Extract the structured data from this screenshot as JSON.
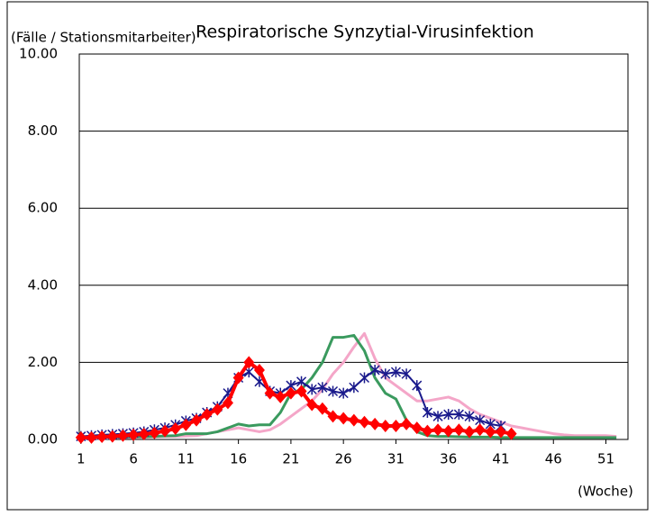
{
  "chart_data": {
    "type": "line",
    "title": "Respiratorische Synzytial-Virusinfektion",
    "y_label": "(Fälle / Stationsmitarbeiter)",
    "x_label": "(Woche)",
    "x": [
      1,
      2,
      3,
      4,
      5,
      6,
      7,
      8,
      9,
      10,
      11,
      12,
      13,
      14,
      15,
      16,
      17,
      18,
      19,
      20,
      21,
      22,
      23,
      24,
      25,
      26,
      27,
      28,
      29,
      30,
      31,
      32,
      33,
      34,
      35,
      36,
      37,
      38,
      39,
      40,
      41,
      42,
      43,
      44,
      45,
      46,
      47,
      48,
      49,
      50,
      51,
      52
    ],
    "xlim": [
      0.5,
      52.5
    ],
    "xticks": [
      1,
      6,
      11,
      16,
      21,
      26,
      31,
      36,
      41,
      46,
      51
    ],
    "ylim": [
      0,
      10
    ],
    "yticks": [
      {
        "value": 0,
        "label": "0.00"
      },
      {
        "value": 2,
        "label": "2.00"
      },
      {
        "value": 4,
        "label": "4.00"
      },
      {
        "value": 6,
        "label": "6.00"
      },
      {
        "value": 8,
        "label": "8.00"
      },
      {
        "value": 10,
        "label": "10.00"
      }
    ],
    "grid": true,
    "series": [
      {
        "color": "#f4a6c8",
        "marker": "none",
        "width": 3,
        "values": [
          0.02,
          0.03,
          0.03,
          0.04,
          0.05,
          0.05,
          0.06,
          0.07,
          0.08,
          0.08,
          0.09,
          0.1,
          0.15,
          0.2,
          0.25,
          0.3,
          0.25,
          0.2,
          0.25,
          0.4,
          0.6,
          0.8,
          1.0,
          1.3,
          1.7,
          2.0,
          2.4,
          2.75,
          2.1,
          1.6,
          1.4,
          1.2,
          1.0,
          1.0,
          1.05,
          1.1,
          1.0,
          0.8,
          0.65,
          0.55,
          0.45,
          0.35,
          0.3,
          0.25,
          0.2,
          0.15,
          0.12,
          0.1,
          0.1,
          0.1,
          0.1,
          0.08
        ]
      },
      {
        "color": "#3a9a5e",
        "marker": "none",
        "width": 3,
        "values": [
          0.05,
          0.05,
          0.05,
          0.06,
          0.06,
          0.07,
          0.07,
          0.08,
          0.09,
          0.1,
          0.15,
          0.15,
          0.15,
          0.2,
          0.3,
          0.4,
          0.35,
          0.38,
          0.38,
          0.7,
          1.2,
          1.3,
          1.6,
          2.0,
          2.65,
          2.65,
          2.7,
          2.3,
          1.6,
          1.2,
          1.05,
          0.5,
          0.2,
          0.1,
          0.08,
          0.08,
          0.07,
          0.06,
          0.06,
          0.06,
          0.05,
          0.05,
          0.05,
          0.05,
          0.05,
          0.05,
          0.05,
          0.05,
          0.05,
          0.05,
          0.05,
          0.05
        ]
      },
      {
        "color": "#1a1a8c",
        "marker": "star",
        "width": 2,
        "values": [
          0.08,
          0.1,
          0.12,
          0.13,
          0.15,
          0.17,
          0.2,
          0.25,
          0.3,
          0.38,
          0.48,
          0.55,
          0.7,
          0.85,
          1.2,
          1.6,
          1.75,
          1.5,
          1.25,
          1.2,
          1.4,
          1.5,
          1.3,
          1.35,
          1.25,
          1.2,
          1.35,
          1.6,
          1.8,
          1.7,
          1.75,
          1.7,
          1.4,
          0.7,
          0.6,
          0.65,
          0.65,
          0.6,
          0.5,
          0.4,
          0.35,
          null,
          null,
          null,
          null,
          null,
          null,
          null,
          null,
          null,
          null,
          null
        ]
      },
      {
        "color": "#ff0000",
        "marker": "diamond",
        "width": 4,
        "values": [
          0.05,
          0.05,
          0.07,
          0.08,
          0.1,
          0.12,
          0.14,
          0.17,
          0.22,
          0.28,
          0.38,
          0.5,
          0.65,
          0.78,
          0.95,
          1.6,
          2.0,
          1.8,
          1.2,
          1.1,
          1.2,
          1.25,
          0.9,
          0.8,
          0.6,
          0.55,
          0.5,
          0.45,
          0.4,
          0.35,
          0.35,
          0.4,
          0.3,
          0.22,
          0.25,
          0.22,
          0.25,
          0.2,
          0.25,
          0.2,
          0.2,
          0.15,
          null,
          null,
          null,
          null,
          null,
          null,
          null,
          null,
          null,
          null
        ]
      }
    ]
  }
}
